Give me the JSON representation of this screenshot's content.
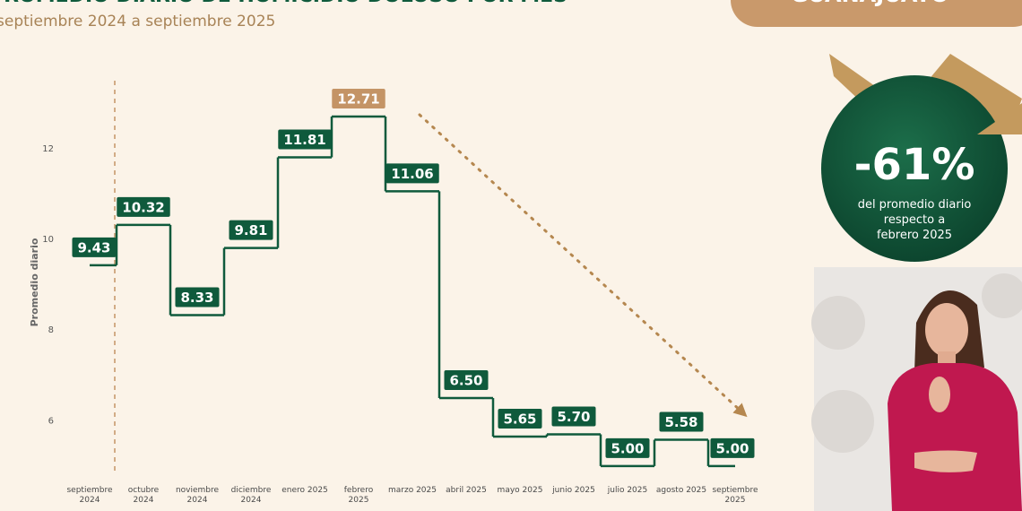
{
  "chart_data": {
    "type": "step",
    "title": "PROMEDIO DIARIO DE HOMICIDIO DOLOSO POR MES",
    "subtitle": "septiembre 2024 a septiembre 2025",
    "y_label": "Promedio diario",
    "categories": [
      "septiembre 2024",
      "octubre 2024",
      "noviembre 2024",
      "diciembre 2024",
      "enero 2025",
      "febrero 2025",
      "marzo 2025",
      "abril 2025",
      "mayo 2025",
      "junio 2025",
      "julio 2025",
      "agosto 2025",
      "septiembre 2025"
    ],
    "values": [
      9.43,
      10.32,
      8.33,
      9.81,
      11.81,
      12.71,
      11.06,
      6.5,
      5.65,
      5.7,
      5.0,
      5.58,
      5.0
    ],
    "value_labels": [
      "9.43",
      "10.32",
      "8.33",
      "9.81",
      "11.81",
      "12.71",
      "11.06",
      "6.50",
      "5.65",
      "5.70",
      "5.00",
      "5.58",
      "5.00"
    ],
    "color": "#0f5a3c",
    "label_colors": [
      "#0f5a3c",
      "#0f5a3c",
      "#0f5a3c",
      "#0f5a3c",
      "#0f5a3c",
      "#c49466",
      "#0f5a3c",
      "#0f5a3c",
      "#0f5a3c",
      "#0f5a3c",
      "#0f5a3c",
      "#0f5a3c",
      "#0f5a3c"
    ],
    "ylim": [
      4.8,
      13.5
    ],
    "yticks": [
      6,
      8,
      10,
      12
    ],
    "grid": false
  },
  "badge": "GUANAJUATO",
  "callout": {
    "headline": "-61%",
    "lines": [
      "del promedio diario",
      "respecto a",
      "febrero 2025"
    ]
  }
}
